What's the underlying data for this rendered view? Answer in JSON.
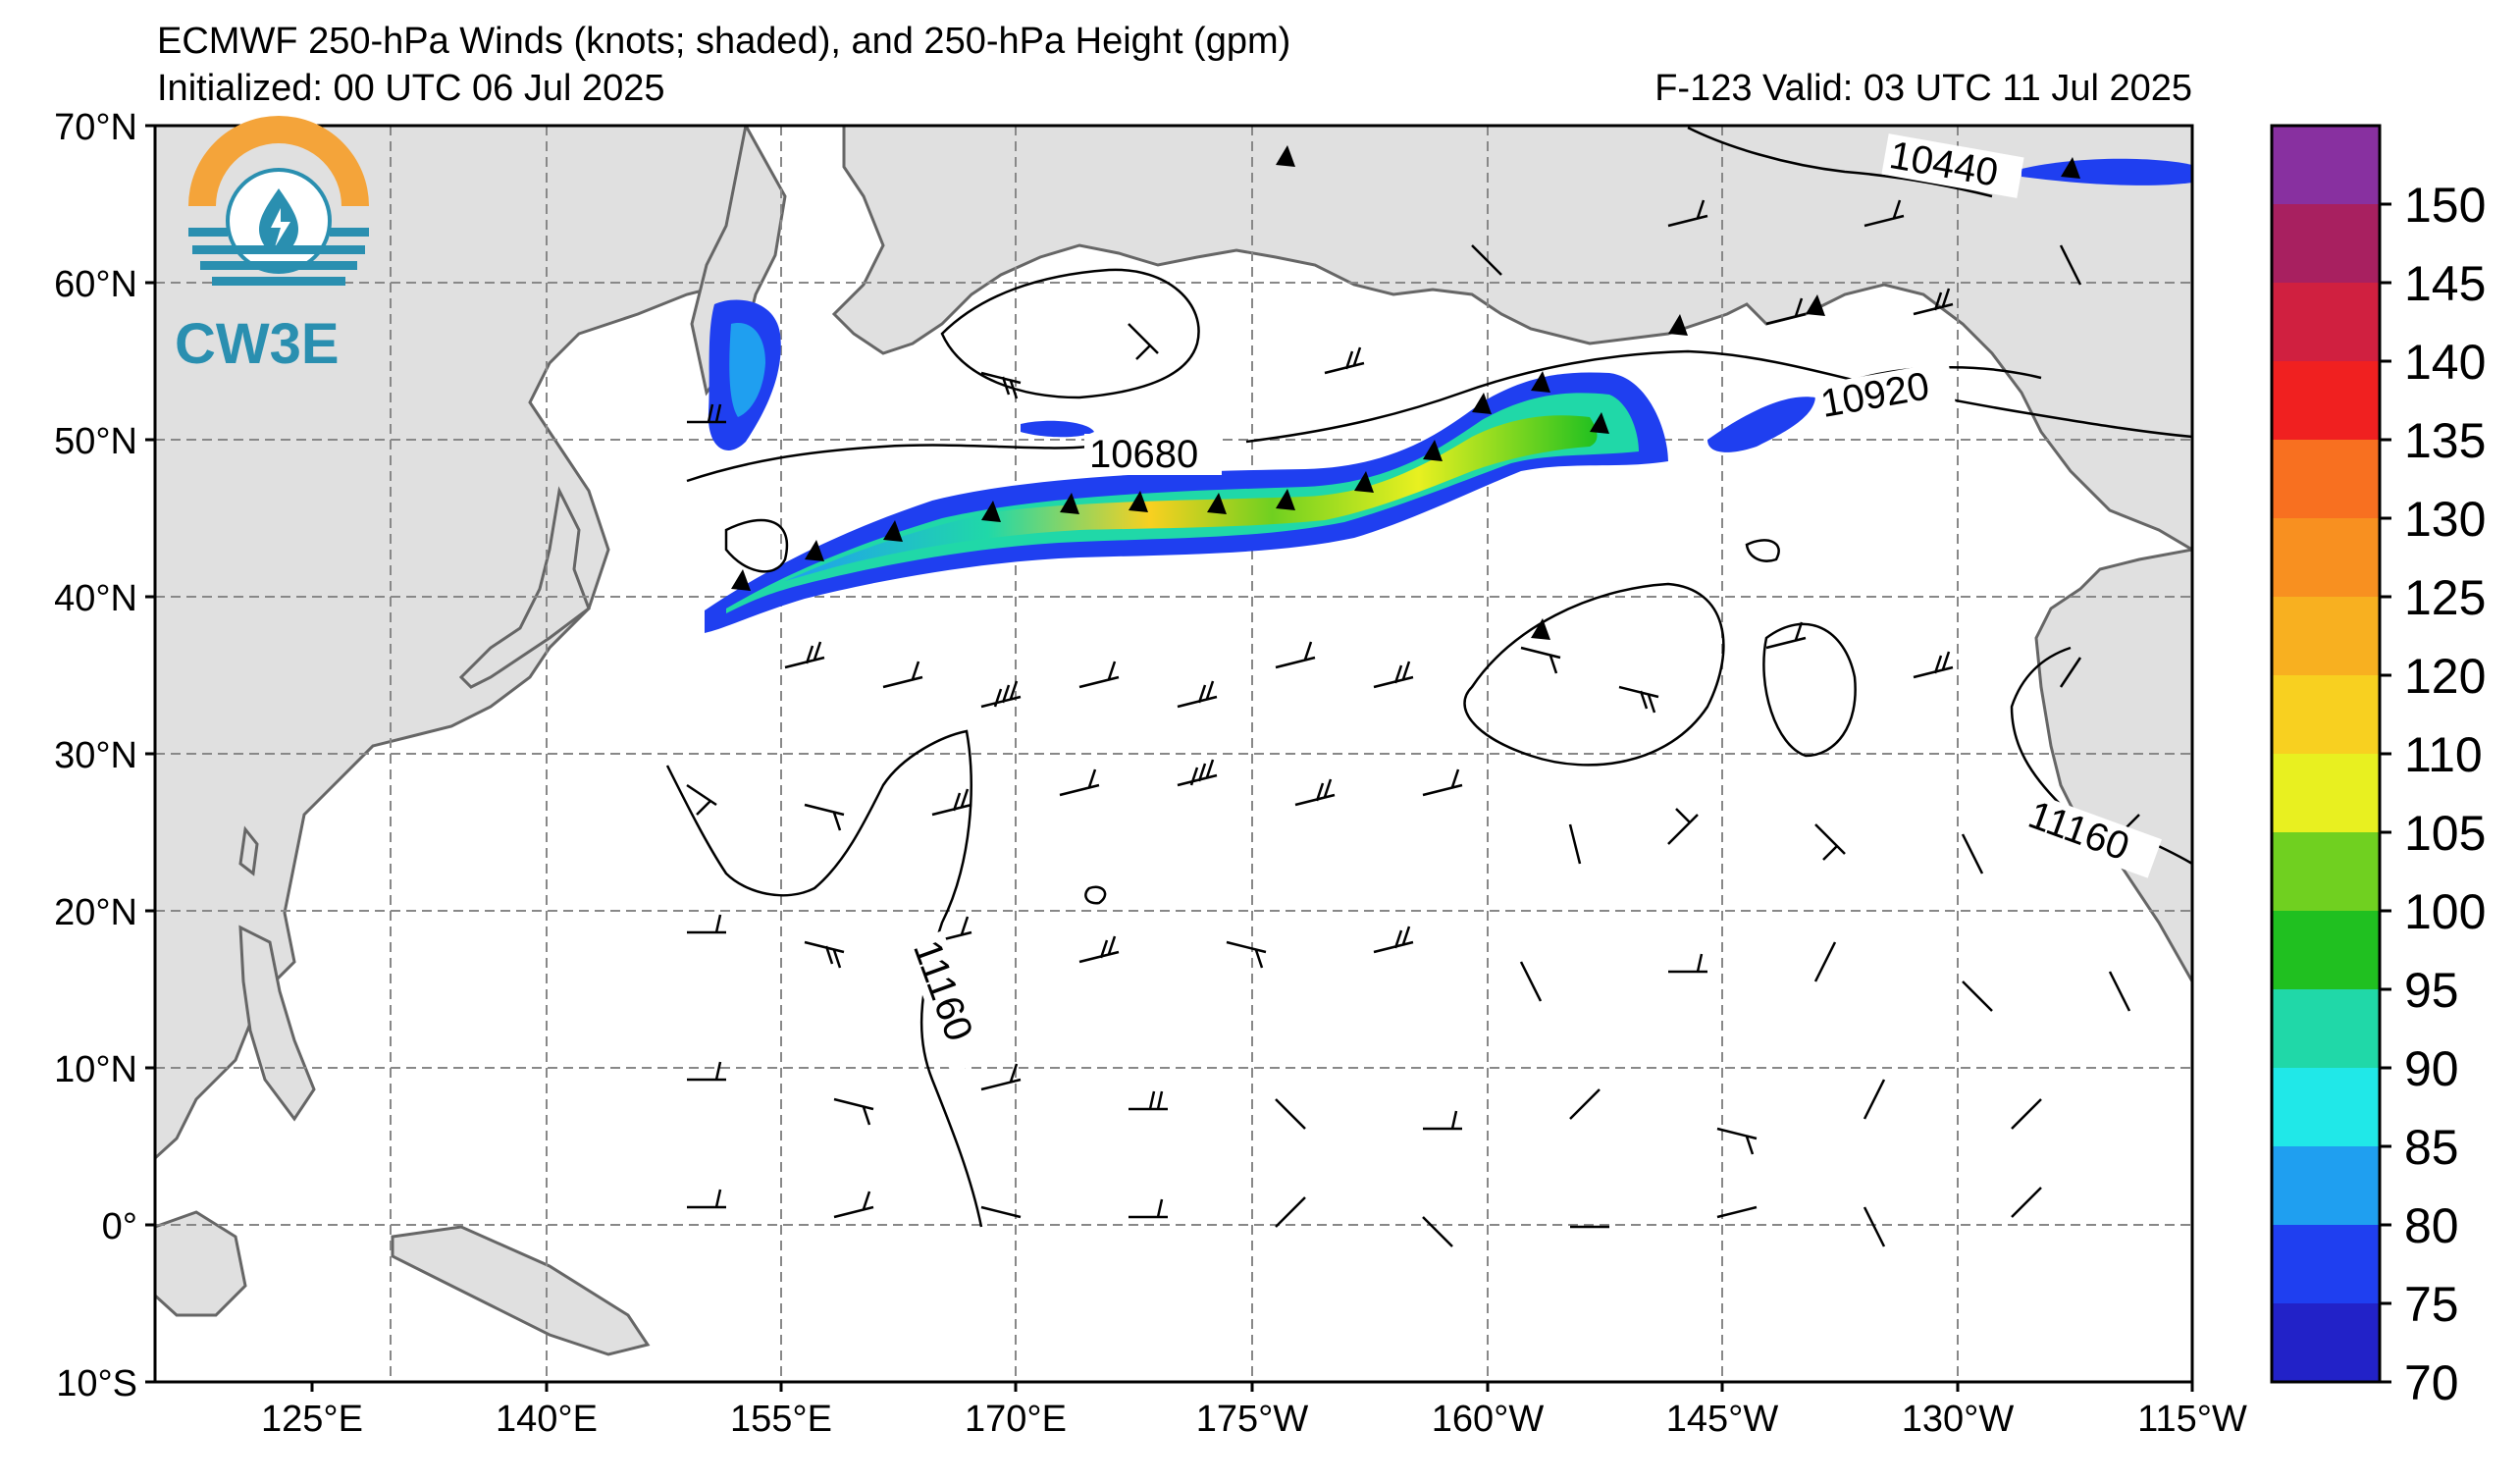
{
  "header": {
    "title_line1": "ECMWF 250-hPa Winds (knots; shaded), and 250-hPa Height (gpm)",
    "title_line2": "Initialized: 00 UTC 06 Jul 2025",
    "title_right": "F-123  Valid: 03 UTC 11 Jul 2025"
  },
  "logo": {
    "text": "CW3E",
    "icon": "water-drop-lightning-icon",
    "colors": {
      "orange": "#f4a43a",
      "teal": "#2a8fb0"
    }
  },
  "map": {
    "lat_labels": [
      "70°N",
      "60°N",
      "50°N",
      "40°N",
      "30°N",
      "20°N",
      "10°N",
      "0°",
      "10°S"
    ],
    "lon_labels": [
      "125°E",
      "140°E",
      "155°E",
      "170°E",
      "175°W",
      "160°W",
      "145°W",
      "130°W",
      "115°W"
    ],
    "land_color": "#e0e0e0",
    "coast_color": "#666666",
    "contour_labels": [
      "10440",
      "10920",
      "10680",
      "11160",
      "11160"
    ]
  },
  "colorbar": {
    "labels": [
      "70",
      "75",
      "80",
      "85",
      "90",
      "95",
      "100",
      "105",
      "110",
      "120",
      "125",
      "130",
      "135",
      "140",
      "145",
      "150"
    ],
    "colors": [
      "#2222c8",
      "#1f3ff0",
      "#1f9ff0",
      "#20e8e8",
      "#20d8a8",
      "#20c020",
      "#70d020",
      "#e8f020",
      "#f8d020",
      "#f8b020",
      "#f89020",
      "#f87020",
      "#f02020",
      "#d02040",
      "#a82060",
      "#8830a0",
      "#702890"
    ]
  }
}
